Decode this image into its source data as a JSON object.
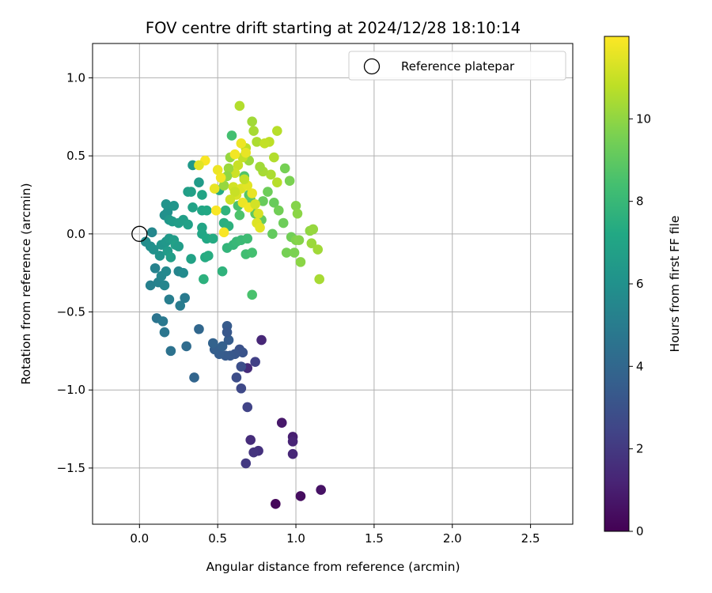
{
  "chart_data": {
    "type": "scatter",
    "title": "FOV centre drift starting at 2024/12/28 18:10:14",
    "xlabel": "Angular distance from reference (arcmin)",
    "ylabel": "Rotation from reference (arcmin)",
    "xlim": [
      -0.3,
      2.77
    ],
    "ylim": [
      -1.86,
      1.22
    ],
    "x_ticks": [
      0.0,
      0.5,
      1.0,
      1.5,
      2.0,
      2.5
    ],
    "x_tick_labels": [
      "0.0",
      "0.5",
      "1.0",
      "1.5",
      "2.0",
      "2.5"
    ],
    "y_ticks": [
      1.0,
      0.5,
      0.0,
      -0.5,
      -1.0,
      -1.5
    ],
    "y_tick_labels": [
      "1.0",
      "0.5",
      "0.0",
      "−0.5",
      "−1.0",
      "−1.5"
    ],
    "grid": true,
    "legend": {
      "position": "upper right",
      "entries": [
        {
          "label": "Reference platepar",
          "marker": "open-circle",
          "x": 0.0,
          "y": 0.0
        }
      ]
    },
    "colorbar": {
      "label": "Hours from first FF file",
      "colormap": "viridis",
      "min": 0,
      "max": 12,
      "ticks": [
        0,
        2,
        4,
        6,
        8,
        10
      ],
      "tick_labels": [
        "0",
        "2",
        "4",
        "6",
        "8",
        "10"
      ]
    },
    "points": [
      {
        "x": 0.87,
        "y": -1.73,
        "h": 0.2
      },
      {
        "x": 1.03,
        "y": -1.68,
        "h": 0.4
      },
      {
        "x": 1.16,
        "y": -1.64,
        "h": 0.6
      },
      {
        "x": 0.91,
        "y": -1.21,
        "h": 0.8
      },
      {
        "x": 0.98,
        "y": -1.3,
        "h": 1.0
      },
      {
        "x": 0.98,
        "y": -1.33,
        "h": 1.2
      },
      {
        "x": 0.98,
        "y": -1.41,
        "h": 1.3
      },
      {
        "x": 0.71,
        "y": -1.32,
        "h": 1.5
      },
      {
        "x": 0.76,
        "y": -1.39,
        "h": 1.7
      },
      {
        "x": 0.73,
        "y": -1.4,
        "h": 1.8
      },
      {
        "x": 0.68,
        "y": -1.47,
        "h": 2.0
      },
      {
        "x": 0.78,
        "y": -0.68,
        "h": 1.3
      },
      {
        "x": 0.69,
        "y": -0.86,
        "h": 1.5
      },
      {
        "x": 0.74,
        "y": -0.82,
        "h": 2.3
      },
      {
        "x": 0.69,
        "y": -1.11,
        "h": 2.4
      },
      {
        "x": 0.65,
        "y": -0.99,
        "h": 2.6
      },
      {
        "x": 0.62,
        "y": -0.92,
        "h": 2.8
      },
      {
        "x": 0.65,
        "y": -0.85,
        "h": 2.9
      },
      {
        "x": 0.64,
        "y": -0.74,
        "h": 3.0
      },
      {
        "x": 0.66,
        "y": -0.76,
        "h": 3.1
      },
      {
        "x": 0.61,
        "y": -0.77,
        "h": 3.2
      },
      {
        "x": 0.58,
        "y": -0.78,
        "h": 3.3
      },
      {
        "x": 0.55,
        "y": -0.78,
        "h": 3.4
      },
      {
        "x": 0.51,
        "y": -0.77,
        "h": 3.5
      },
      {
        "x": 0.48,
        "y": -0.74,
        "h": 3.6
      },
      {
        "x": 0.53,
        "y": -0.72,
        "h": 3.7
      },
      {
        "x": 0.47,
        "y": -0.7,
        "h": 3.8
      },
      {
        "x": 0.56,
        "y": -0.59,
        "h": 3.4
      },
      {
        "x": 0.57,
        "y": -0.68,
        "h": 3.5
      },
      {
        "x": 0.56,
        "y": -0.63,
        "h": 3.3
      },
      {
        "x": 0.35,
        "y": -0.92,
        "h": 3.9
      },
      {
        "x": 0.38,
        "y": -0.61,
        "h": 4.0
      },
      {
        "x": 0.3,
        "y": -0.72,
        "h": 4.2
      },
      {
        "x": 0.2,
        "y": -0.75,
        "h": 4.5
      },
      {
        "x": 0.16,
        "y": -0.63,
        "h": 4.7
      },
      {
        "x": 0.11,
        "y": -0.54,
        "h": 4.6
      },
      {
        "x": 0.15,
        "y": -0.56,
        "h": 4.8
      },
      {
        "x": 0.29,
        "y": -0.41,
        "h": 4.9
      },
      {
        "x": 0.26,
        "y": -0.46,
        "h": 5.0
      },
      {
        "x": 0.19,
        "y": -0.42,
        "h": 5.1
      },
      {
        "x": 0.07,
        "y": -0.33,
        "h": 5.2
      },
      {
        "x": 0.12,
        "y": -0.31,
        "h": 5.3
      },
      {
        "x": 0.16,
        "y": -0.33,
        "h": 5.4
      },
      {
        "x": 0.14,
        "y": -0.27,
        "h": 5.5
      },
      {
        "x": 0.1,
        "y": -0.22,
        "h": 5.3
      },
      {
        "x": 0.17,
        "y": -0.24,
        "h": 5.6
      },
      {
        "x": 0.25,
        "y": -0.24,
        "h": 5.4
      },
      {
        "x": 0.28,
        "y": -0.25,
        "h": 5.7
      },
      {
        "x": 0.04,
        "y": -0.05,
        "h": 5.8
      },
      {
        "x": 0.07,
        "y": -0.08,
        "h": 5.9
      },
      {
        "x": 0.08,
        "y": 0.01,
        "h": 5.5
      },
      {
        "x": 0.09,
        "y": -0.1,
        "h": 6.0
      },
      {
        "x": 0.13,
        "y": -0.14,
        "h": 6.1
      },
      {
        "x": 0.14,
        "y": -0.07,
        "h": 6.2
      },
      {
        "x": 0.17,
        "y": -0.05,
        "h": 6.3
      },
      {
        "x": 0.19,
        "y": -0.03,
        "h": 6.4
      },
      {
        "x": 0.18,
        "y": -0.11,
        "h": 6.5
      },
      {
        "x": 0.22,
        "y": -0.04,
        "h": 6.6
      },
      {
        "x": 0.2,
        "y": -0.15,
        "h": 6.7
      },
      {
        "x": 0.23,
        "y": -0.07,
        "h": 6.8
      },
      {
        "x": 0.25,
        "y": -0.08,
        "h": 6.6
      },
      {
        "x": 0.16,
        "y": 0.12,
        "h": 5.9
      },
      {
        "x": 0.18,
        "y": 0.14,
        "h": 6.0
      },
      {
        "x": 0.17,
        "y": 0.19,
        "h": 6.1
      },
      {
        "x": 0.22,
        "y": 0.18,
        "h": 6.2
      },
      {
        "x": 0.19,
        "y": 0.09,
        "h": 6.3
      },
      {
        "x": 0.21,
        "y": 0.08,
        "h": 6.5
      },
      {
        "x": 0.25,
        "y": 0.07,
        "h": 6.6
      },
      {
        "x": 0.28,
        "y": 0.09,
        "h": 6.7
      },
      {
        "x": 0.31,
        "y": 0.06,
        "h": 6.8
      },
      {
        "x": 0.34,
        "y": 0.17,
        "h": 6.9
      },
      {
        "x": 0.31,
        "y": 0.27,
        "h": 6.7
      },
      {
        "x": 0.33,
        "y": 0.27,
        "h": 6.8
      },
      {
        "x": 0.34,
        "y": 0.44,
        "h": 6.4
      },
      {
        "x": 0.38,
        "y": 0.33,
        "h": 6.5
      },
      {
        "x": 0.4,
        "y": 0.25,
        "h": 7.0
      },
      {
        "x": 0.4,
        "y": 0.15,
        "h": 7.1
      },
      {
        "x": 0.43,
        "y": 0.15,
        "h": 7.2
      },
      {
        "x": 0.4,
        "y": 0.04,
        "h": 7.0
      },
      {
        "x": 0.4,
        "y": 0.0,
        "h": 7.1
      },
      {
        "x": 0.43,
        "y": -0.03,
        "h": 7.2
      },
      {
        "x": 0.47,
        "y": -0.03,
        "h": 7.3
      },
      {
        "x": 0.33,
        "y": -0.16,
        "h": 6.9
      },
      {
        "x": 0.42,
        "y": -0.15,
        "h": 7.3
      },
      {
        "x": 0.44,
        "y": -0.14,
        "h": 7.4
      },
      {
        "x": 0.41,
        "y": -0.29,
        "h": 7.6
      },
      {
        "x": 0.53,
        "y": -0.24,
        "h": 7.7
      },
      {
        "x": 0.54,
        "y": 0.07,
        "h": 7.5
      },
      {
        "x": 0.57,
        "y": 0.05,
        "h": 7.6
      },
      {
        "x": 0.55,
        "y": 0.15,
        "h": 7.7
      },
      {
        "x": 0.51,
        "y": 0.28,
        "h": 7.4
      },
      {
        "x": 0.56,
        "y": -0.09,
        "h": 7.8
      },
      {
        "x": 0.6,
        "y": -0.07,
        "h": 7.9
      },
      {
        "x": 0.62,
        "y": -0.05,
        "h": 8.0
      },
      {
        "x": 0.65,
        "y": -0.04,
        "h": 8.1
      },
      {
        "x": 0.69,
        "y": -0.03,
        "h": 8.2
      },
      {
        "x": 0.68,
        "y": -0.13,
        "h": 8.3
      },
      {
        "x": 0.72,
        "y": -0.12,
        "h": 8.4
      },
      {
        "x": 0.72,
        "y": -0.39,
        "h": 8.5
      },
      {
        "x": 0.59,
        "y": 0.63,
        "h": 8.4
      },
      {
        "x": 0.63,
        "y": 0.18,
        "h": 8.5
      },
      {
        "x": 0.64,
        "y": 0.12,
        "h": 8.6
      },
      {
        "x": 0.67,
        "y": 0.37,
        "h": 8.7
      },
      {
        "x": 0.7,
        "y": 0.25,
        "h": 8.8
      },
      {
        "x": 0.71,
        "y": 0.22,
        "h": 8.9
      },
      {
        "x": 0.74,
        "y": 0.13,
        "h": 9.0
      },
      {
        "x": 0.78,
        "y": 0.09,
        "h": 9.1
      },
      {
        "x": 0.79,
        "y": 0.21,
        "h": 9.2
      },
      {
        "x": 0.82,
        "y": 0.27,
        "h": 9.3
      },
      {
        "x": 0.85,
        "y": 0.0,
        "h": 9.1
      },
      {
        "x": 0.86,
        "y": 0.2,
        "h": 9.2
      },
      {
        "x": 0.89,
        "y": 0.15,
        "h": 9.4
      },
      {
        "x": 0.92,
        "y": 0.07,
        "h": 9.3
      },
      {
        "x": 0.93,
        "y": 0.42,
        "h": 9.5
      },
      {
        "x": 0.96,
        "y": 0.34,
        "h": 9.6
      },
      {
        "x": 0.97,
        "y": -0.02,
        "h": 9.4
      },
      {
        "x": 0.94,
        "y": -0.12,
        "h": 9.5
      },
      {
        "x": 0.99,
        "y": -0.12,
        "h": 9.6
      },
      {
        "x": 1.0,
        "y": -0.04,
        "h": 9.7
      },
      {
        "x": 1.02,
        "y": -0.04,
        "h": 9.8
      },
      {
        "x": 1.03,
        "y": -0.18,
        "h": 9.9
      },
      {
        "x": 1.0,
        "y": 0.18,
        "h": 9.8
      },
      {
        "x": 1.01,
        "y": 0.13,
        "h": 9.9
      },
      {
        "x": 1.09,
        "y": 0.02,
        "h": 10.0
      },
      {
        "x": 1.11,
        "y": 0.03,
        "h": 10.1
      },
      {
        "x": 1.1,
        "y": -0.06,
        "h": 10.2
      },
      {
        "x": 1.14,
        "y": -0.1,
        "h": 10.3
      },
      {
        "x": 1.15,
        "y": -0.29,
        "h": 10.4
      },
      {
        "x": 0.72,
        "y": 0.72,
        "h": 10.3
      },
      {
        "x": 0.73,
        "y": 0.66,
        "h": 10.4
      },
      {
        "x": 0.75,
        "y": 0.59,
        "h": 10.5
      },
      {
        "x": 0.64,
        "y": 0.82,
        "h": 10.6
      },
      {
        "x": 0.88,
        "y": 0.66,
        "h": 10.7
      },
      {
        "x": 0.83,
        "y": 0.59,
        "h": 10.8
      },
      {
        "x": 0.8,
        "y": 0.58,
        "h": 10.9
      },
      {
        "x": 0.86,
        "y": 0.49,
        "h": 10.6
      },
      {
        "x": 0.88,
        "y": 0.33,
        "h": 10.7
      },
      {
        "x": 0.84,
        "y": 0.38,
        "h": 10.5
      },
      {
        "x": 0.79,
        "y": 0.4,
        "h": 10.4
      },
      {
        "x": 0.77,
        "y": 0.43,
        "h": 10.3
      },
      {
        "x": 0.7,
        "y": 0.47,
        "h": 10.2
      },
      {
        "x": 0.68,
        "y": 0.55,
        "h": 10.8
      },
      {
        "x": 0.66,
        "y": 0.49,
        "h": 10.9
      },
      {
        "x": 0.63,
        "y": 0.44,
        "h": 11.0
      },
      {
        "x": 0.61,
        "y": 0.39,
        "h": 11.1
      },
      {
        "x": 0.58,
        "y": 0.49,
        "h": 10.1
      },
      {
        "x": 0.57,
        "y": 0.42,
        "h": 10.2
      },
      {
        "x": 0.56,
        "y": 0.37,
        "h": 10.0
      },
      {
        "x": 0.54,
        "y": 0.31,
        "h": 10.1
      },
      {
        "x": 0.6,
        "y": 0.3,
        "h": 11.2
      },
      {
        "x": 0.62,
        "y": 0.25,
        "h": 11.3
      },
      {
        "x": 0.65,
        "y": 0.29,
        "h": 11.4
      },
      {
        "x": 0.69,
        "y": 0.31,
        "h": 11.5
      },
      {
        "x": 0.72,
        "y": 0.26,
        "h": 11.6
      },
      {
        "x": 0.66,
        "y": 0.2,
        "h": 11.7
      },
      {
        "x": 0.7,
        "y": 0.17,
        "h": 11.8
      },
      {
        "x": 0.74,
        "y": 0.19,
        "h": 11.2
      },
      {
        "x": 0.76,
        "y": 0.13,
        "h": 11.3
      },
      {
        "x": 0.75,
        "y": 0.07,
        "h": 11.4
      },
      {
        "x": 0.77,
        "y": 0.04,
        "h": 11.5
      },
      {
        "x": 0.68,
        "y": 0.52,
        "h": 11.6
      },
      {
        "x": 0.65,
        "y": 0.58,
        "h": 11.7
      },
      {
        "x": 0.61,
        "y": 0.51,
        "h": 11.8
      },
      {
        "x": 0.5,
        "y": 0.41,
        "h": 11.7
      },
      {
        "x": 0.52,
        "y": 0.36,
        "h": 11.8
      },
      {
        "x": 0.48,
        "y": 0.29,
        "h": 11.6
      },
      {
        "x": 0.49,
        "y": 0.15,
        "h": 11.9
      },
      {
        "x": 0.54,
        "y": 0.01,
        "h": 11.9
      },
      {
        "x": 0.42,
        "y": 0.47,
        "h": 11.9
      },
      {
        "x": 0.38,
        "y": 0.44,
        "h": 11.5
      },
      {
        "x": 0.61,
        "y": 0.27,
        "h": 11.0
      },
      {
        "x": 0.58,
        "y": 0.22,
        "h": 11.1
      },
      {
        "x": 0.67,
        "y": 0.35,
        "h": 10.9
      }
    ]
  }
}
